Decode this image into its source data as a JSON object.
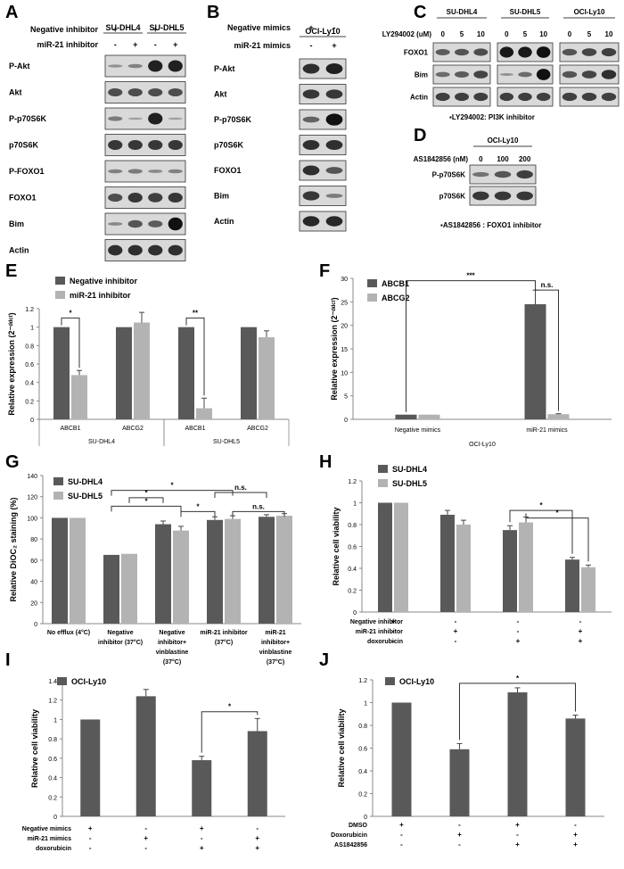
{
  "panels": {
    "A": {
      "label": "A",
      "cell_lines": [
        "SU-DHL4",
        "SU-DHL5"
      ],
      "treatments": [
        {
          "name": "Negative inhibitor",
          "signs": [
            "+",
            "-",
            "+",
            "-"
          ]
        },
        {
          "name": "miR-21 inhibitor",
          "signs": [
            "-",
            "+",
            "-",
            "+"
          ]
        }
      ],
      "blots": [
        {
          "name": "P-Akt",
          "intensity": [
            0.15,
            0.25,
            0.9,
            0.9
          ]
        },
        {
          "name": "Akt",
          "intensity": [
            0.6,
            0.6,
            0.6,
            0.6
          ]
        },
        {
          "name": "P-p70S6K",
          "intensity": [
            0.3,
            0.05,
            0.9,
            0.05
          ]
        },
        {
          "name": "p70S6K",
          "intensity": [
            0.75,
            0.75,
            0.75,
            0.75
          ]
        },
        {
          "name": "P-FOXO1",
          "intensity": [
            0.25,
            0.3,
            0.2,
            0.25
          ]
        },
        {
          "name": "FOXO1",
          "intensity": [
            0.6,
            0.75,
            0.7,
            0.75
          ]
        },
        {
          "name": "Bim",
          "intensity": [
            0.2,
            0.55,
            0.5,
            1.0
          ]
        },
        {
          "name": "Actin",
          "intensity": [
            0.8,
            0.8,
            0.8,
            0.8
          ]
        }
      ]
    },
    "B": {
      "label": "B",
      "cell_lines": [
        "OCI-Ly10"
      ],
      "treatments": [
        {
          "name": "Negative mimics",
          "signs": [
            "+",
            "-"
          ]
        },
        {
          "name": "miR-21 mimics",
          "signs": [
            "-",
            "+"
          ]
        }
      ],
      "blots": [
        {
          "name": "P-Akt",
          "intensity": [
            0.8,
            0.9
          ]
        },
        {
          "name": "Akt",
          "intensity": [
            0.75,
            0.75
          ]
        },
        {
          "name": "P-p70S6K",
          "intensity": [
            0.45,
            1.0
          ]
        },
        {
          "name": "p70S6K",
          "intensity": [
            0.8,
            0.8
          ]
        },
        {
          "name": "FOXO1",
          "intensity": [
            0.8,
            0.55
          ]
        },
        {
          "name": "Bim",
          "intensity": [
            0.75,
            0.3
          ]
        },
        {
          "name": "Actin",
          "intensity": [
            0.85,
            0.85
          ]
        }
      ]
    },
    "C": {
      "label": "C",
      "treatment_label": "LY294002 (uM)",
      "cell_lines": [
        "SU-DHL4",
        "SU-DHL5",
        "OCI-Ly10"
      ],
      "doses": [
        "0",
        "5",
        "10"
      ],
      "blots": [
        {
          "name": "FOXO1",
          "intensity": [
            [
              0.5,
              0.55,
              0.6
            ],
            [
              0.95,
              0.95,
              1.0
            ],
            [
              0.55,
              0.65,
              0.7
            ]
          ]
        },
        {
          "name": "Bim",
          "intensity": [
            [
              0.4,
              0.5,
              0.65
            ],
            [
              0.15,
              0.4,
              1.0
            ],
            [
              0.55,
              0.65,
              0.8
            ]
          ]
        },
        {
          "name": "Actin",
          "intensity": [
            [
              0.7,
              0.7,
              0.7
            ],
            [
              0.7,
              0.7,
              0.7
            ],
            [
              0.7,
              0.7,
              0.7
            ]
          ]
        }
      ],
      "note": "▪LY294002:  PI3K inhibitor"
    },
    "D": {
      "label": "D",
      "treatment_label": "AS1842856  (nM)",
      "cell_lines": [
        "OCI-Ly10"
      ],
      "doses": [
        "0",
        "100",
        "200"
      ],
      "blots": [
        {
          "name": "P-p70S6K",
          "intensity": [
            0.35,
            0.55,
            0.7
          ]
        },
        {
          "name": "p70S6K",
          "intensity": [
            0.75,
            0.75,
            0.75
          ]
        }
      ],
      "note": "▪AS1842856 : FOXO1 inhibitor"
    },
    "E": {
      "label": "E"
    },
    "F": {
      "label": "F"
    },
    "G": {
      "label": "G"
    },
    "H": {
      "label": "H"
    },
    "I": {
      "label": "I"
    },
    "J": {
      "label": "J"
    }
  },
  "colors": {
    "dark_bar": "#595959",
    "light_bar": "#b3b3b3",
    "blot_background": "#d9d9d9",
    "band": "#111111"
  },
  "chart_data": [
    {
      "id": "E",
      "type": "bar",
      "ylabel": "Relative expression (2⁻ᵈᵈᶜᵗ)",
      "ylim": [
        0,
        1.2
      ],
      "yticks": [
        "0",
        "0.2",
        "0.4",
        "0.6",
        "0.8",
        "1",
        "1.2"
      ],
      "categories": [
        "ABCB1",
        "ABCG2",
        "ABCB1",
        "ABCG2"
      ],
      "groups": [
        {
          "label": "SU-DHL4",
          "span": [
            0,
            1
          ]
        },
        {
          "label": "SU-DHL5",
          "span": [
            2,
            3
          ]
        }
      ],
      "series": [
        {
          "name": "Negative inhibitor",
          "values": [
            1.0,
            1.0,
            1.0,
            1.0
          ],
          "errors": [
            0,
            0,
            0,
            0
          ]
        },
        {
          "name": "miR-21 inhibitor",
          "values": [
            0.48,
            1.05,
            0.12,
            0.89
          ],
          "errors": [
            0.05,
            0.11,
            0.11,
            0.07
          ]
        }
      ],
      "significance": [
        {
          "label": "*",
          "cat": 0
        },
        {
          "label": "**",
          "cat": 2
        }
      ]
    },
    {
      "id": "F",
      "type": "bar",
      "ylabel": "Relative expression (2⁻ᵈᵈᶜᵗ)",
      "ylim": [
        0,
        30
      ],
      "yticks": [
        "0",
        "5",
        "10",
        "15",
        "20",
        "25",
        "30"
      ],
      "categories": [
        "Negative mimics",
        "miR-21 mimics"
      ],
      "group_label": "OCI-Ly10",
      "series": [
        {
          "name": "ABCB1",
          "values": [
            1.0,
            24.5
          ],
          "errors": [
            0,
            3.0
          ]
        },
        {
          "name": "ABCG2",
          "values": [
            1.0,
            1.1
          ],
          "errors": [
            0,
            0.1
          ]
        }
      ],
      "significance": [
        {
          "label": "***"
        },
        {
          "label": "n.s."
        }
      ]
    },
    {
      "id": "G",
      "type": "bar",
      "ylabel": "Relative DiOC₂ staining (%)",
      "ylim": [
        0,
        140
      ],
      "yticks": [
        "0",
        "20",
        "40",
        "60",
        "80",
        "100",
        "120",
        "140"
      ],
      "categories": [
        [
          "No efflux (4°C)"
        ],
        [
          "Negative",
          "inhibitor (37°C)"
        ],
        [
          "Negative",
          "inhibitor+",
          "vinblastine",
          "(37°C)"
        ],
        [
          "miR-21 inhibitor",
          "(37°C)"
        ],
        [
          "miR-21",
          "inhibitor+",
          "vinblastine",
          "(37°C)"
        ]
      ],
      "series": [
        {
          "name": "SU-DHL4",
          "values": [
            100,
            65,
            94,
            98,
            101
          ],
          "errors": [
            0,
            0,
            3,
            3,
            2
          ]
        },
        {
          "name": "SU-DHL5",
          "values": [
            100,
            66,
            88,
            99,
            102
          ],
          "errors": [
            0,
            0,
            4,
            3,
            2
          ]
        }
      ],
      "significance": [
        {
          "label": "*"
        },
        {
          "label": "*"
        },
        {
          "label": "*"
        },
        {
          "label": "*"
        },
        {
          "label": "n.s."
        },
        {
          "label": "n.s."
        }
      ]
    },
    {
      "id": "H",
      "type": "bar",
      "ylabel": "Relative cell viability",
      "ylim": [
        0,
        1.2
      ],
      "yticks": [
        "0",
        "0.2",
        "0.4",
        "0.6",
        "0.8",
        "1",
        "1.2"
      ],
      "series": [
        {
          "name": "SU-DHL4",
          "values": [
            1.0,
            0.89,
            0.75,
            0.48
          ],
          "errors": [
            0,
            0.04,
            0.04,
            0.02
          ]
        },
        {
          "name": "SU-DHL5",
          "values": [
            1.0,
            0.8,
            0.82,
            0.41
          ],
          "errors": [
            0,
            0.04,
            0.05,
            0.02
          ]
        }
      ],
      "treatments": [
        {
          "name": "Negative inhibitor",
          "signs": [
            "+",
            "-",
            "-",
            "-"
          ]
        },
        {
          "name": "miR-21 inhibitor",
          "signs": [
            "-",
            "+",
            "-",
            "+"
          ]
        },
        {
          "name": "doxorubicin",
          "signs": [
            "-",
            "-",
            "+",
            "+"
          ]
        }
      ],
      "significance": [
        {
          "label": "*"
        },
        {
          "label": "*"
        }
      ]
    },
    {
      "id": "I",
      "type": "bar",
      "ylabel": "Relative cell viability",
      "ylim": [
        0,
        1.4
      ],
      "yticks": [
        "0",
        "0.2",
        "0.4",
        "0.6",
        "0.8",
        "1",
        "1.2",
        "1.4"
      ],
      "series": [
        {
          "name": "OCI-Ly10",
          "values": [
            1.0,
            1.24,
            0.58,
            0.88
          ],
          "errors": [
            0,
            0.07,
            0.04,
            0.13
          ]
        }
      ],
      "treatments": [
        {
          "name": "Negative mimics",
          "signs": [
            "+",
            "-",
            "+",
            "-"
          ]
        },
        {
          "name": "miR-21 mimics",
          "signs": [
            "-",
            "+",
            "-",
            "+"
          ]
        },
        {
          "name": "doxorubicin",
          "signs": [
            "-",
            "-",
            "+",
            "+"
          ]
        }
      ],
      "significance": [
        {
          "label": "*"
        }
      ]
    },
    {
      "id": "J",
      "type": "bar",
      "ylabel": "Relative cell viability",
      "ylim": [
        0,
        1.2
      ],
      "yticks": [
        "0",
        "0.2",
        "0.4",
        "0.6",
        "0.8",
        "1",
        "1.2"
      ],
      "series": [
        {
          "name": "OCI-Ly10",
          "values": [
            1.0,
            0.59,
            1.09,
            0.86
          ],
          "errors": [
            0,
            0.05,
            0.04,
            0.03
          ]
        }
      ],
      "treatments": [
        {
          "name": "DMSO",
          "signs": [
            "+",
            "-",
            "+",
            "-"
          ]
        },
        {
          "name": "Doxorubicin",
          "signs": [
            "-",
            "+",
            "-",
            "+"
          ]
        },
        {
          "name": "AS1842856",
          "signs": [
            "-",
            "-",
            "+",
            "+"
          ]
        }
      ],
      "significance": [
        {
          "label": "*"
        }
      ]
    }
  ]
}
